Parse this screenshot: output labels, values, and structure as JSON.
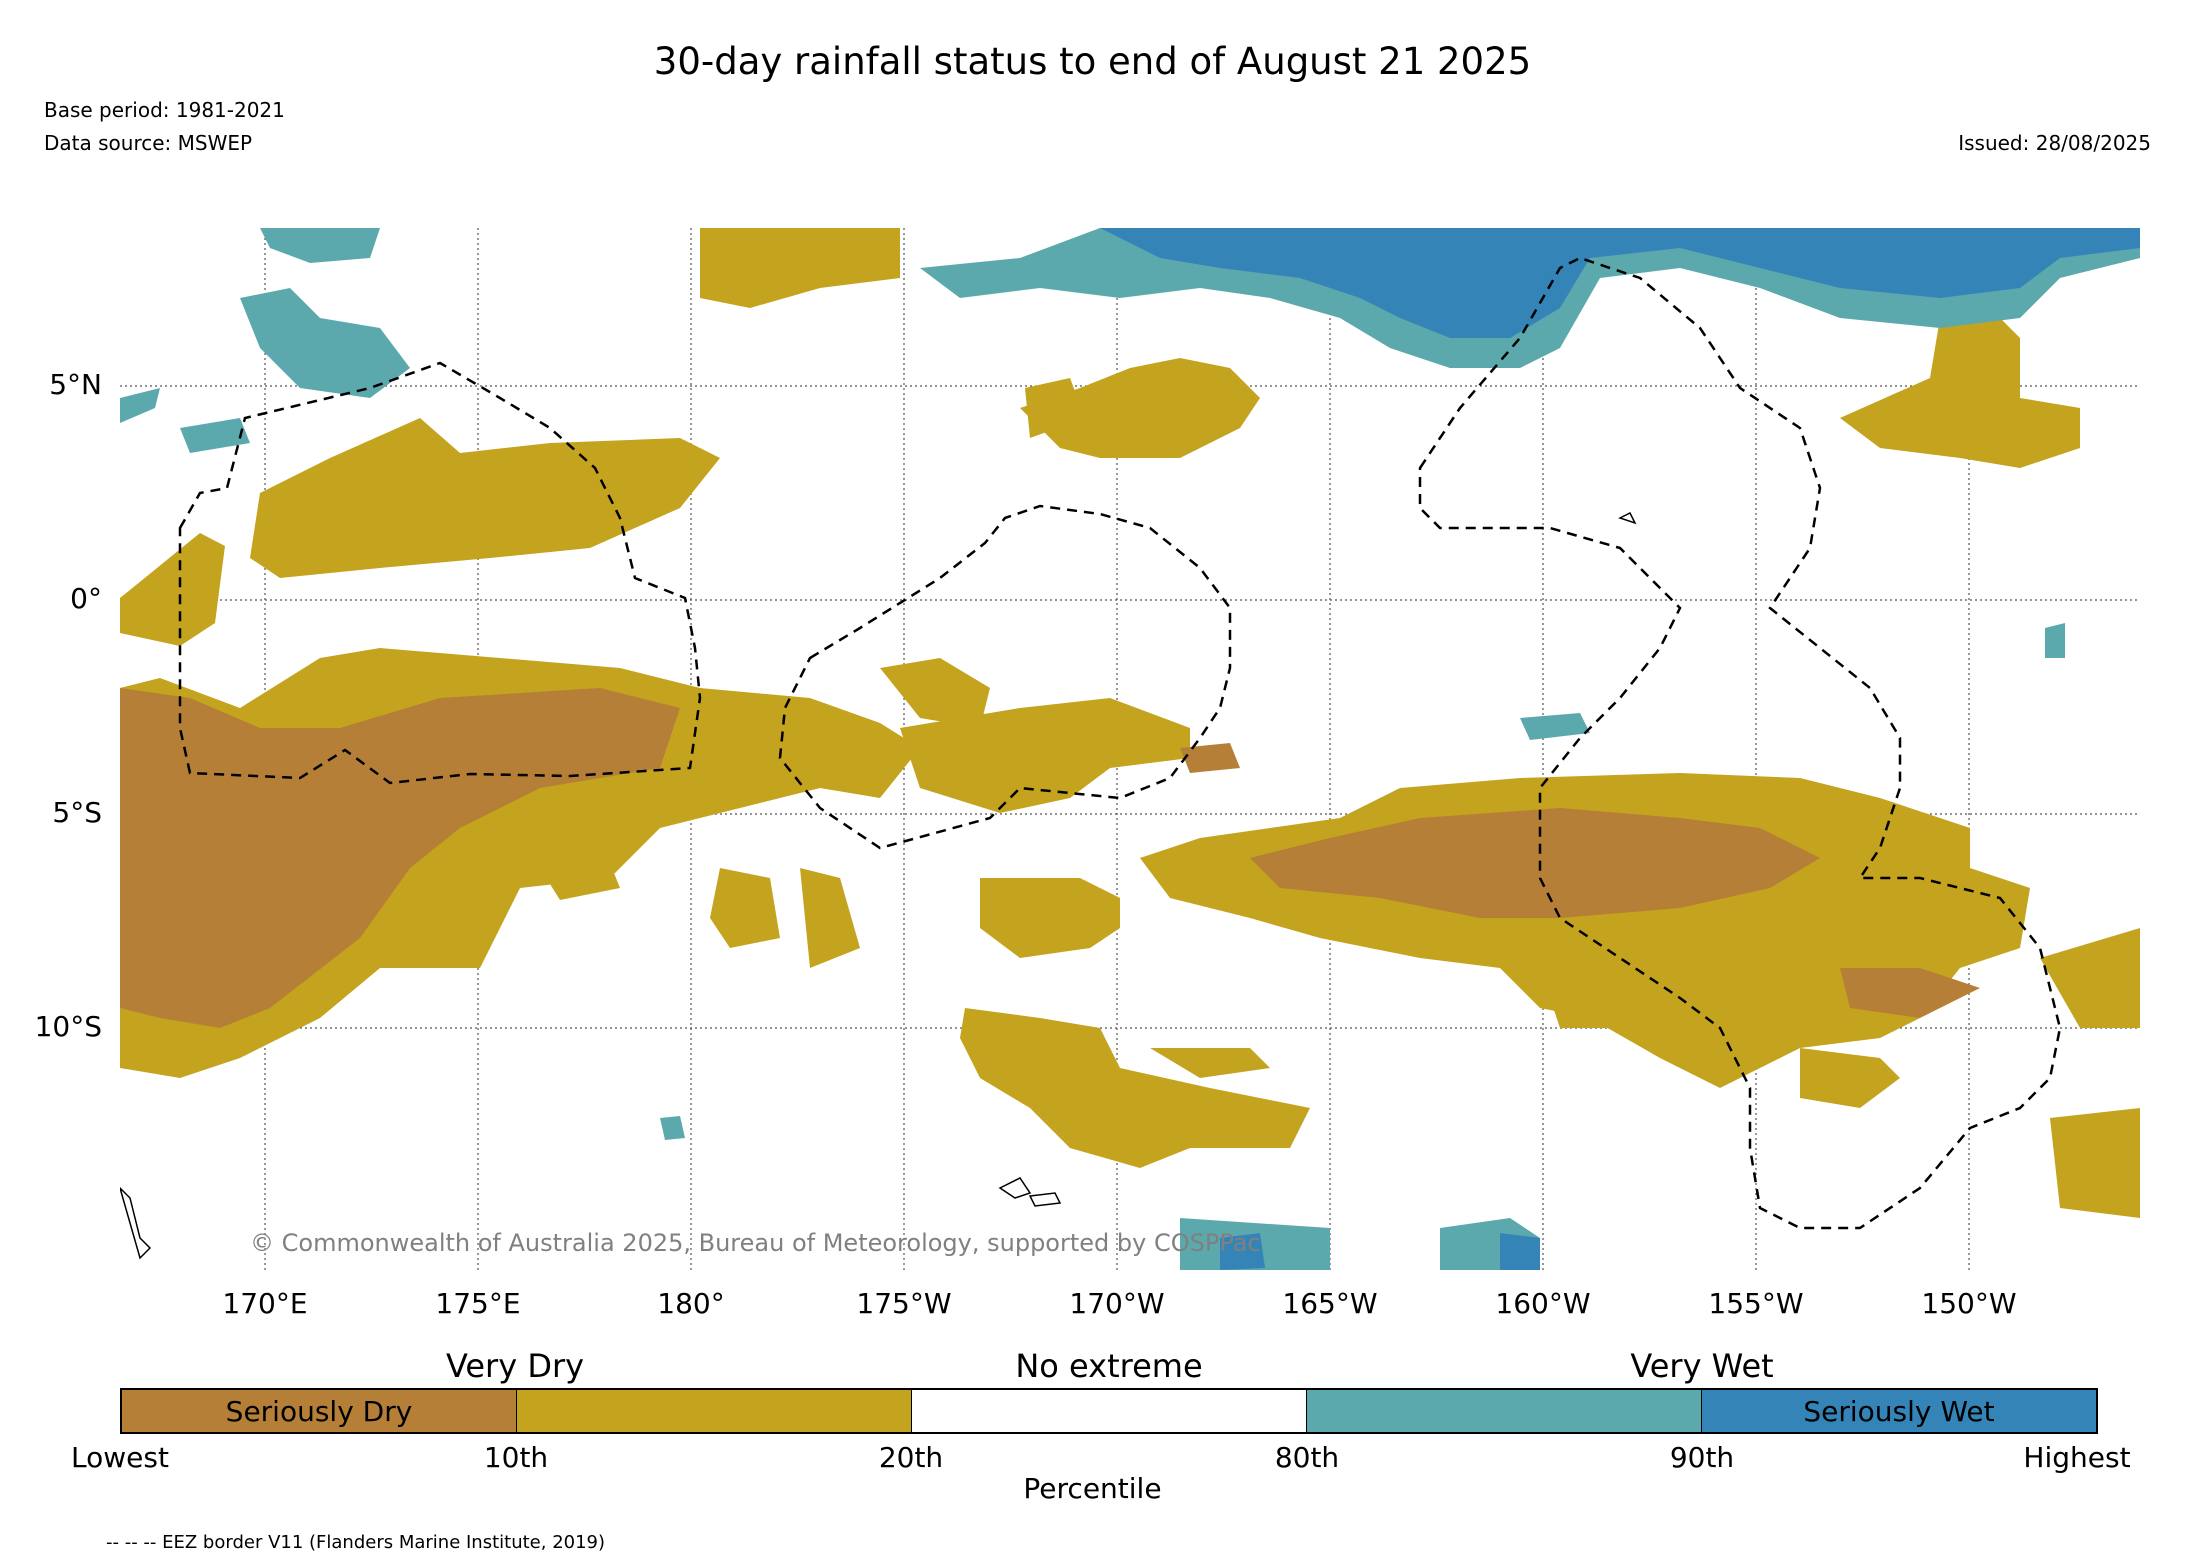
{
  "title": "30-day rainfall status to end of August 21 2025",
  "meta": {
    "base_period": "Base period: 1981-2021",
    "data_source": "Data source: MSWEP",
    "issued": "Issued: 28/08/2025"
  },
  "map": {
    "copyright": "© Commonwealth of Australia 2025, Bureau of Meteorology, supported by COSPPac",
    "lat_labels": [
      "5°N",
      "0°",
      "5°S",
      "10°S"
    ],
    "lon_labels": [
      "170°E",
      "175°E",
      "180°",
      "175°W",
      "170°W",
      "165°W",
      "160°W",
      "155°W",
      "150°W"
    ],
    "colors": {
      "seriously_dry": "#b57f37",
      "very_dry": "#c4a31e",
      "no_extreme": "#ffffff",
      "very_wet": "#5ca9ad",
      "seriously_wet": "#3584b8"
    }
  },
  "legend": {
    "categories": [
      "Very Dry",
      "No extreme",
      "Very Wet"
    ],
    "segments": [
      "Seriously Dry",
      "",
      "",
      "",
      "Seriously Wet"
    ],
    "ticks": [
      "Lowest",
      "10th",
      "20th",
      "80th",
      "90th",
      "Highest"
    ],
    "axis_title": "Percentile"
  },
  "eez_note": "-- -- -- EEZ border V11 (Flanders Marine Institute, 2019)"
}
